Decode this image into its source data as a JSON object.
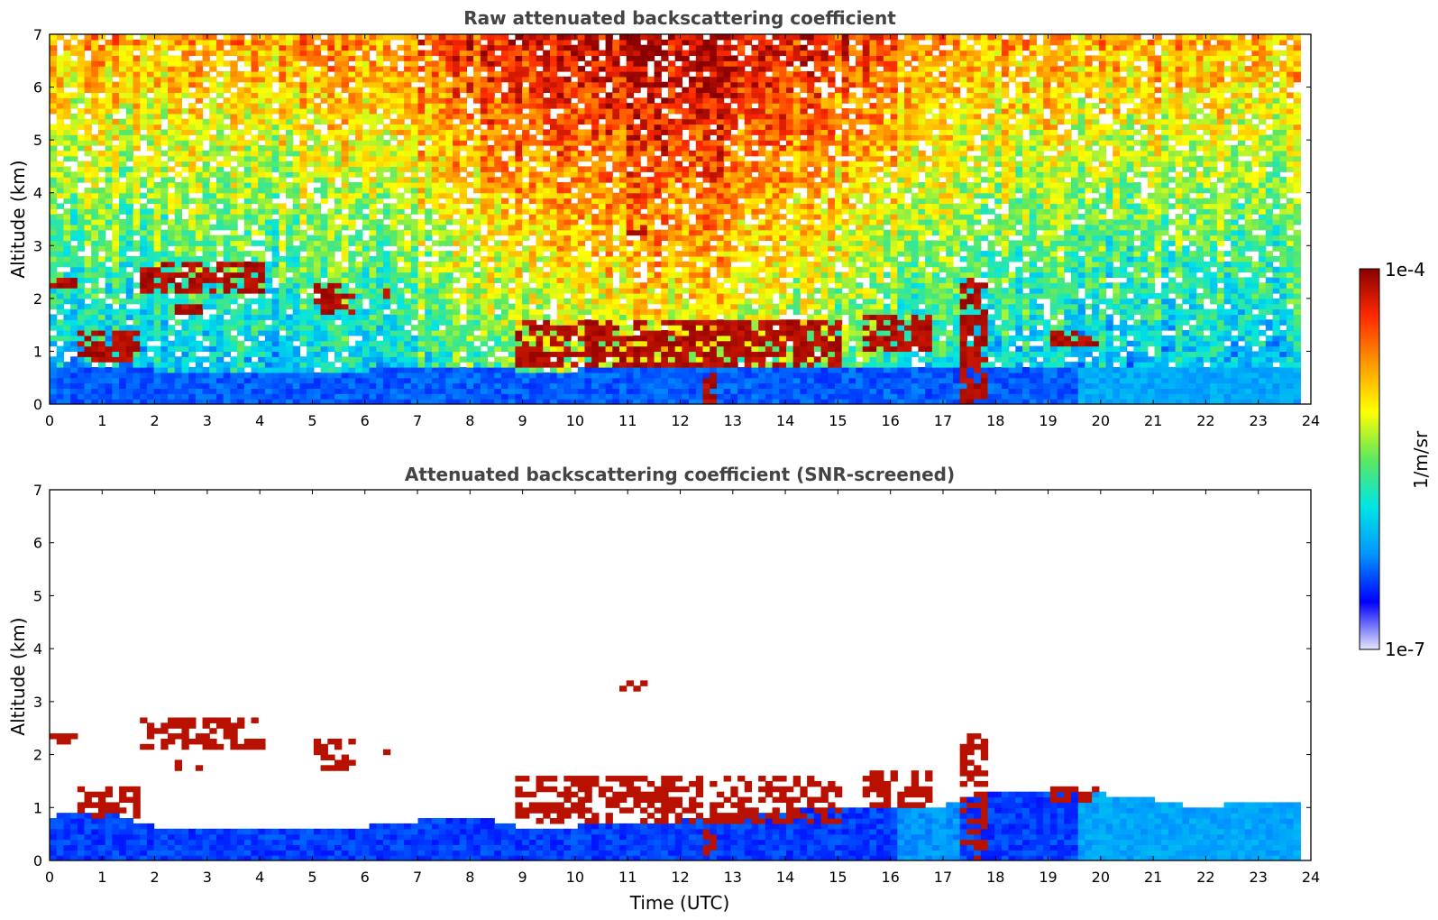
{
  "colors": {
    "scale": [
      "#e6e6fa",
      "#0000ff",
      "#0096ff",
      "#00e5e5",
      "#5fe85f",
      "#ffff00",
      "#ff9a00",
      "#ff2a00",
      "#8b0000"
    ],
    "background": "#ffffff"
  },
  "colorbar": {
    "max_label": "1e-4",
    "min_label": "1e-7",
    "unit_label": "1/m/sr",
    "max_value": 0.0001,
    "min_value": 1e-07,
    "scale": "log"
  },
  "chart_data": [
    {
      "type": "heatmap",
      "title": "Raw attenuated backscattering coefficient",
      "xlabel": "",
      "ylabel": "Altitude (km)",
      "xlim": [
        0,
        24
      ],
      "ylim": [
        0,
        7
      ],
      "xticks": [
        "0",
        "1",
        "2",
        "3",
        "4",
        "5",
        "6",
        "7",
        "8",
        "9",
        "10",
        "11",
        "12",
        "13",
        "14",
        "15",
        "16",
        "17",
        "18",
        "19",
        "20",
        "21",
        "22",
        "23",
        "24"
      ],
      "yticks": [
        "0",
        "1",
        "2",
        "3",
        "4",
        "5",
        "6",
        "7"
      ],
      "data_end_time": 23.8,
      "z_unit": "1/m/sr",
      "layers": [
        {
          "t0": 0.0,
          "t1": 0.4,
          "z0": 2.2,
          "z1": 2.4
        },
        {
          "t0": 1.6,
          "t1": 4.0,
          "z0": 2.1,
          "z1": 2.6
        },
        {
          "t0": 4.9,
          "t1": 5.8,
          "z0": 1.7,
          "z1": 2.2
        },
        {
          "t0": 6.3,
          "t1": 6.4,
          "z0": 2.0,
          "z1": 2.1
        },
        {
          "t0": 0.5,
          "t1": 1.7,
          "z0": 0.8,
          "z1": 1.3
        },
        {
          "t0": 2.3,
          "t1": 2.9,
          "z0": 1.65,
          "z1": 1.8
        },
        {
          "t0": 8.8,
          "t1": 15.0,
          "z0": 0.7,
          "z1": 1.5
        },
        {
          "t0": 10.8,
          "t1": 11.3,
          "z0": 3.2,
          "z1": 3.35
        },
        {
          "t0": 15.4,
          "t1": 16.7,
          "z0": 1.0,
          "z1": 1.7
        },
        {
          "t0": 17.2,
          "t1": 17.8,
          "z0": 0.0,
          "z1": 2.4
        },
        {
          "t0": 19.0,
          "t1": 19.9,
          "z0": 1.1,
          "z1": 1.4
        },
        {
          "t0": 12.3,
          "t1": 12.6,
          "z0": 0.0,
          "z1": 0.5
        }
      ]
    },
    {
      "type": "heatmap",
      "title": "Attenuated backscattering coefficient (SNR-screened)",
      "xlabel": "Time (UTC)",
      "ylabel": "Altitude (km)",
      "xlim": [
        0,
        24
      ],
      "ylim": [
        0,
        7
      ],
      "xticks": [
        "0",
        "1",
        "2",
        "3",
        "4",
        "5",
        "6",
        "7",
        "8",
        "9",
        "10",
        "11",
        "12",
        "13",
        "14",
        "15",
        "16",
        "17",
        "18",
        "19",
        "20",
        "21",
        "22",
        "23",
        "24"
      ],
      "yticks": [
        "0",
        "1",
        "2",
        "3",
        "4",
        "5",
        "6",
        "7"
      ],
      "data_end_time": 23.8,
      "z_unit": "1/m/sr",
      "boundary_layer_top": [
        [
          0,
          0.8
        ],
        [
          1,
          0.9
        ],
        [
          2,
          0.55
        ],
        [
          4,
          0.6
        ],
        [
          6,
          0.6
        ],
        [
          8,
          0.8
        ],
        [
          9,
          0.55
        ],
        [
          12,
          0.7
        ],
        [
          15,
          1.0
        ],
        [
          17,
          1.0
        ],
        [
          18,
          1.3
        ],
        [
          20,
          1.2
        ],
        [
          21,
          1.1
        ],
        [
          22,
          0.9
        ],
        [
          22.5,
          1.1
        ],
        [
          23.8,
          1.1
        ]
      ]
    }
  ]
}
